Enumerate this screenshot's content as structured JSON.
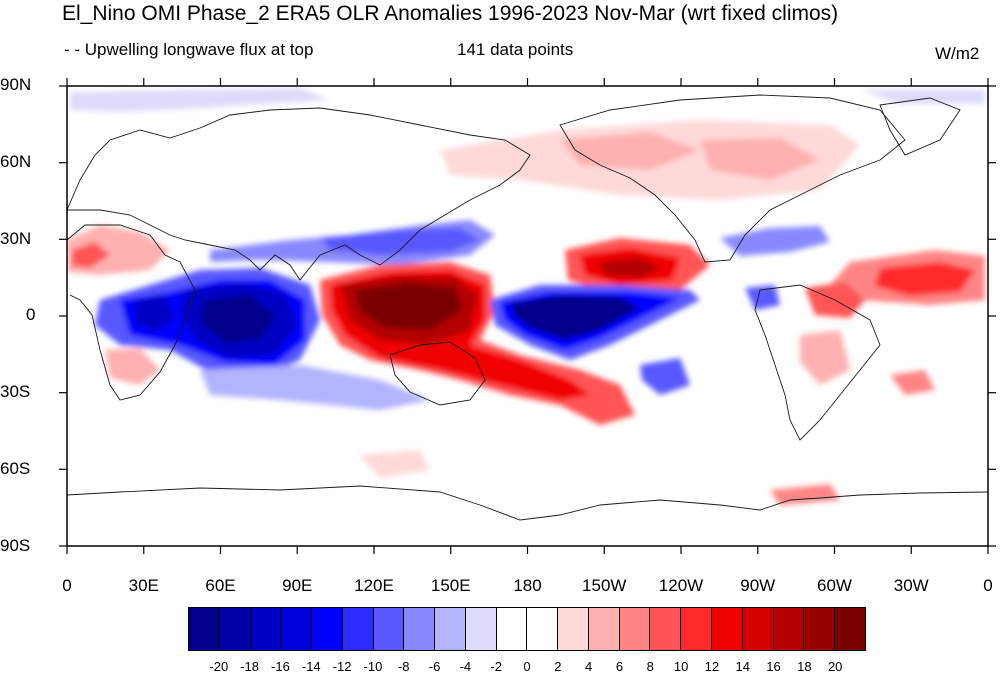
{
  "title": "El_Nino OMI Phase_2 ERA5 OLR Anomalies 1996-2023 Nov-Mar (wrt fixed climos)",
  "subtitle_left": "- - Upwelling longwave flux at top",
  "subtitle_center": "141 data points",
  "units": "W/m2",
  "lat_labels": [
    "90N",
    "60N",
    "30N",
    "0",
    "30S",
    "60S",
    "90S"
  ],
  "lon_labels": [
    "0",
    "30E",
    "60E",
    "90E",
    "120E",
    "150E",
    "180",
    "150W",
    "120W",
    "90W",
    "60W",
    "30W",
    "0"
  ],
  "colorbar": {
    "labels": [
      "-20",
      "-18",
      "-16",
      "-14",
      "-12",
      "-10",
      "-8",
      "-6",
      "-4",
      "-2",
      "0",
      "2",
      "4",
      "6",
      "8",
      "10",
      "12",
      "14",
      "16",
      "18",
      "20"
    ],
    "colors": [
      "#00008a",
      "#0000a8",
      "#0000c4",
      "#0000de",
      "#0000ff",
      "#2b2bff",
      "#5959ff",
      "#8989ff",
      "#b3b3ff",
      "#dcdcfa",
      "#ffffff",
      "#ffffff",
      "#ffd9d9",
      "#ffb0b0",
      "#ff8585",
      "#ff5555",
      "#ff2b2b",
      "#f00000",
      "#d40000",
      "#b40000",
      "#960000",
      "#7a0000"
    ]
  }
}
